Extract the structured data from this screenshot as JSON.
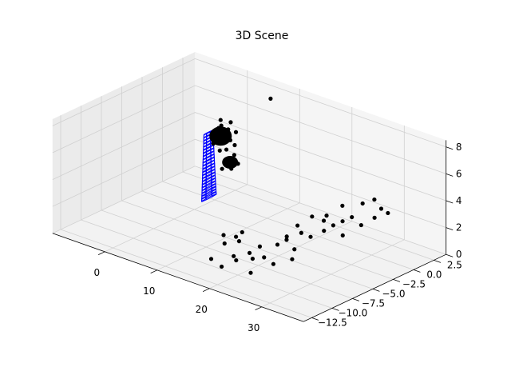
{
  "chart_data": {
    "type": "scatter",
    "projection": "3d",
    "title": "3D Scene",
    "xlabel": "",
    "ylabel": "",
    "zlabel": "",
    "grid": true,
    "xlim": [
      -10,
      38
    ],
    "ylim": [
      -13.5,
      4
    ],
    "zlim": [
      0,
      8.5
    ],
    "x_ticks": [
      0,
      10,
      20,
      30
    ],
    "y_ticks": [
      2.5,
      0.0,
      -2.5,
      -5.0,
      -7.5,
      -10.0,
      -12.5
    ],
    "z_ticks": [
      0,
      2,
      4,
      6,
      8
    ],
    "x_tick_labels": [
      "0",
      "10",
      "20",
      "30"
    ],
    "y_tick_labels": [
      "2.5",
      "0.0",
      "−2.5",
      "−5.0",
      "−7.5",
      "−10.0",
      "−12.5"
    ],
    "z_tick_labels": [
      "0",
      "2",
      "4",
      "6",
      "8"
    ],
    "series": [
      {
        "kind": "scatter",
        "color": "#000000",
        "points": [
          [
            18,
            -12,
            1.5
          ],
          [
            19,
            -11,
            2.5
          ],
          [
            20,
            -12,
            1.2
          ],
          [
            21,
            -10.5,
            2.8
          ],
          [
            22,
            -11.5,
            1.8
          ],
          [
            18.5,
            -10.8,
            3.0
          ],
          [
            23,
            -10.5,
            2.2
          ],
          [
            24,
            -11,
            1.0
          ],
          [
            20.5,
            -9.8,
            3.2
          ],
          [
            22.5,
            -9.8,
            1.5
          ],
          [
            25,
            -10,
            2.0
          ],
          [
            26,
            -9.5,
            1.5
          ],
          [
            26,
            -9,
            2.8
          ],
          [
            27,
            -8.5,
            3.4
          ],
          [
            28,
            -8.2,
            2.5
          ],
          [
            29,
            -8,
            3.8
          ],
          [
            27.5,
            -7.5,
            4.0
          ],
          [
            30,
            -7.5,
            3.5
          ],
          [
            31,
            -6.5,
            3.8
          ],
          [
            29.5,
            -7,
            4.8
          ],
          [
            32,
            -6,
            4.2
          ],
          [
            31.5,
            -6.5,
            5.0
          ],
          [
            33,
            -5.5,
            4.5
          ],
          [
            32.5,
            -5.2,
            5.5
          ],
          [
            34,
            -5,
            4.8
          ],
          [
            34.5,
            -4,
            5.6
          ],
          [
            35,
            -4.5,
            4.2
          ],
          [
            36,
            -3.5,
            4.6
          ],
          [
            35.5,
            -3.2,
            5.8
          ],
          [
            36.5,
            -3,
            5.2
          ],
          [
            37,
            -2.5,
            4.8
          ],
          [
            30.5,
            -6.2,
            4.4
          ],
          [
            33.5,
            -5.8,
            3.6
          ],
          [
            28.5,
            -8.8,
            2.0
          ],
          [
            24.5,
            -10.2,
            2.8
          ],
          [
            21.5,
            -11.2,
            3.4
          ],
          [
            19.5,
            -10.2,
            1.4
          ],
          [
            26.5,
            -8.2,
            3.0
          ],
          [
            0,
            0,
            4.5
          ],
          [
            0.5,
            0.5,
            4.8
          ],
          [
            1,
            0,
            5.0
          ],
          [
            1.5,
            0.5,
            4.6
          ],
          [
            0.5,
            -0.5,
            4.4
          ],
          [
            2,
            0,
            4.9
          ],
          [
            1,
            1,
            5.1
          ],
          [
            0,
            0.8,
            5.3
          ],
          [
            2.5,
            0.3,
            4.7
          ],
          [
            3,
            -0.5,
            4.3
          ],
          [
            4,
            -1,
            3.9
          ],
          [
            4.5,
            -0.5,
            4.1
          ],
          [
            5,
            -1,
            3.7
          ],
          [
            5.5,
            -1.5,
            3.5
          ],
          [
            6,
            -1,
            3.8
          ],
          [
            4.2,
            -1.8,
            3.4
          ],
          [
            3.5,
            0.2,
            4.5
          ],
          [
            2.2,
            -0.8,
            4.2
          ],
          [
            1.2,
            -0.3,
            5.6
          ],
          [
            1.8,
            0.8,
            5.8
          ],
          [
            0.8,
            0.2,
            6.0
          ],
          [
            2.8,
            0.8,
            5.2
          ],
          [
            6,
            3,
            7.5
          ]
        ]
      },
      {
        "kind": "wireframe",
        "color": "#0000ff",
        "description": "curved tubular mesh descending from the black cluster"
      }
    ]
  }
}
